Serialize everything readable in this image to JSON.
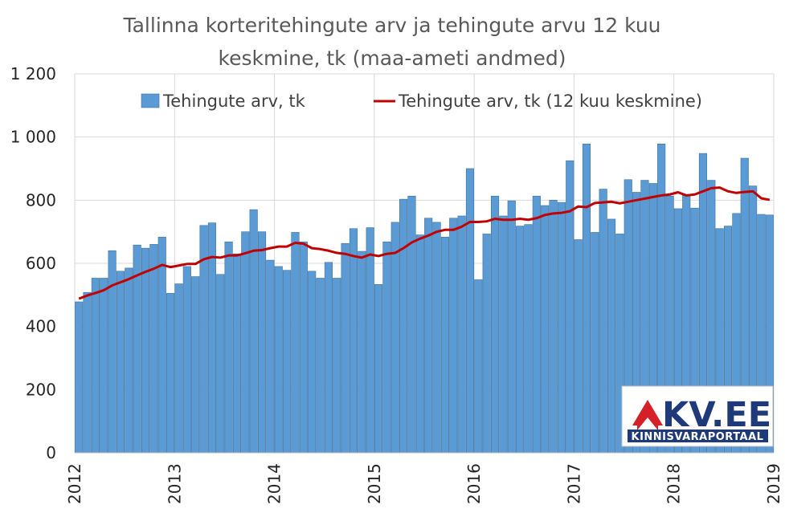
{
  "chart_data": {
    "type": "bar",
    "title_line1": "Tallinna korteritehingute arv ja tehingute arvu 12 kuu",
    "title_line2": "keskmine, tk (maa-ameti andmed)",
    "ylim": [
      0,
      1200
    ],
    "y_ticks": [
      {
        "value": 0,
        "label": "0"
      },
      {
        "value": 200,
        "label": "200"
      },
      {
        "value": 400,
        "label": "400"
      },
      {
        "value": 600,
        "label": "600"
      },
      {
        "value": 800,
        "label": "800"
      },
      {
        "value": 1000,
        "label": "1 000"
      },
      {
        "value": 1200,
        "label": "1 200"
      }
    ],
    "x_ticks": [
      {
        "month_index": 0,
        "label": "2012"
      },
      {
        "month_index": 12,
        "label": "2013"
      },
      {
        "month_index": 24,
        "label": "2014"
      },
      {
        "month_index": 36,
        "label": "2015"
      },
      {
        "month_index": 48,
        "label": "2016"
      },
      {
        "month_index": 60,
        "label": "2017"
      },
      {
        "month_index": 72,
        "label": "2018"
      },
      {
        "month_index": 84,
        "label": "2019"
      }
    ],
    "grid": true,
    "legend_position": "top",
    "series": [
      {
        "name": "Tehingute arv, tk",
        "kind": "bar",
        "color": "#5b9bd5",
        "values": [
          478,
          508,
          553,
          553,
          640,
          575,
          585,
          658,
          648,
          660,
          683,
          505,
          535,
          590,
          558,
          720,
          728,
          565,
          668,
          630,
          700,
          770,
          700,
          610,
          590,
          578,
          698,
          668,
          575,
          553,
          603,
          553,
          663,
          710,
          638,
          713,
          533,
          668,
          730,
          803,
          813,
          690,
          743,
          730,
          683,
          743,
          750,
          900,
          548,
          693,
          813,
          750,
          798,
          718,
          723,
          813,
          783,
          800,
          793,
          925,
          675,
          978,
          698,
          835,
          740,
          693,
          865,
          825,
          863,
          853,
          978,
          813,
          773,
          818,
          775,
          948,
          863,
          710,
          718,
          758,
          933,
          845,
          755,
          753
        ]
      },
      {
        "name": "Tehingute arv, tk (12 kuu keskmine)",
        "kind": "line",
        "color": "#c00000",
        "values": [
          488,
          498,
          506,
          515,
          530,
          540,
          550,
          562,
          573,
          583,
          595,
          588,
          593,
          598,
          598,
          613,
          620,
          618,
          625,
          625,
          632,
          640,
          642,
          648,
          653,
          653,
          665,
          662,
          648,
          645,
          640,
          633,
          630,
          623,
          618,
          628,
          623,
          630,
          633,
          648,
          666,
          678,
          688,
          700,
          706,
          706,
          716,
          731,
          731,
          733,
          741,
          738,
          738,
          741,
          738,
          743,
          753,
          758,
          760,
          765,
          780,
          778,
          791,
          793,
          795,
          790,
          795,
          800,
          805,
          810,
          815,
          818,
          825,
          815,
          818,
          828,
          838,
          840,
          828,
          823,
          826,
          828,
          806,
          801
        ]
      }
    ]
  },
  "logo": {
    "brand": "KV.EE",
    "tagline": "KINNISVARAPORTAAL",
    "house_color": "#d62027",
    "brand_color": "#1f3a7a"
  }
}
